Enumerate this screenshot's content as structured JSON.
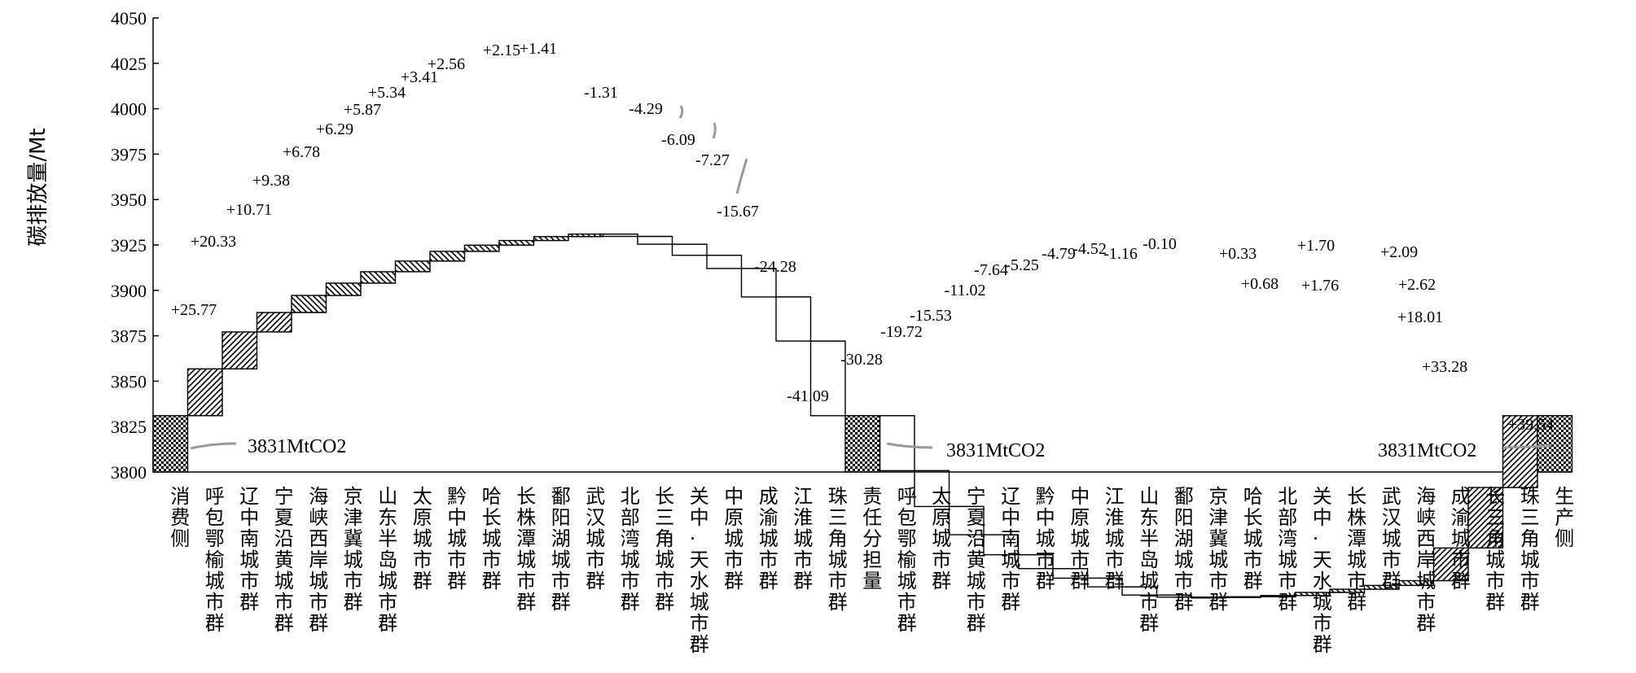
{
  "chart_data": {
    "type": "bar",
    "chart_style": "waterfall",
    "ylabel": "碳排放量/Mt",
    "ylim": [
      3800,
      4050
    ],
    "yticks": [
      3800,
      3825,
      3850,
      3875,
      3900,
      3925,
      3950,
      3975,
      4000,
      4025,
      4050
    ],
    "grid": false,
    "categories": [
      "消费侧",
      "呼包鄂榆城市群",
      "辽中南城市群",
      "宁夏沿黄城市群",
      "海峡西岸城市群",
      "京津冀城市群",
      "山东半岛城市群",
      "太原城市群",
      "黔中城市群",
      "哈长城市群",
      "长株潭城市群",
      "鄱阳湖城市群",
      "武汉城市群",
      "北部湾城市群",
      "长三角城市群",
      "关中-天水城市群",
      "中原城市群",
      "成渝城市群",
      "江淮城市群",
      "珠三角城市群",
      "责任分担量",
      "呼包鄂榆城市群",
      "太原城市群",
      "宁夏沿黄城市群",
      "辽中南城市群",
      "黔中城市群",
      "中原城市群",
      "江淮城市群",
      "山东半岛城市群",
      "鄱阳湖城市群",
      "京津冀城市群",
      "哈长城市群",
      "北部湾城市群",
      "关中-天水城市群",
      "长株潭城市群",
      "武汉城市群",
      "海峡西岸城市群",
      "成渝城市群",
      "长三角城市群",
      "珠三角城市群",
      "生产侧"
    ],
    "values": [
      3831,
      25.77,
      20.33,
      10.71,
      9.38,
      6.78,
      6.29,
      5.87,
      5.34,
      3.41,
      2.56,
      2.15,
      1.41,
      -1.31,
      -4.29,
      -6.09,
      -7.27,
      -15.67,
      -24.28,
      -41.09,
      3831,
      -30.28,
      -19.72,
      -15.53,
      -11.02,
      -7.64,
      -5.25,
      -4.79,
      -4.52,
      -1.16,
      -0.1,
      0.33,
      0.68,
      1.7,
      1.76,
      2.09,
      2.62,
      18.01,
      33.28,
      39.54,
      3831
    ],
    "value_labels": [
      "",
      "+25.77",
      "+20.33",
      "+10.71",
      "+9.38",
      "+6.78",
      "+6.29",
      "+5.87",
      "+5.34",
      "+3.41",
      "+2.56",
      "+2.15",
      "+1.41",
      "-1.31",
      "-4.29",
      "-6.09",
      "-7.27",
      "-15.67",
      "-24.28",
      "-41.09",
      "",
      "-30.28",
      "-19.72",
      "-15.53",
      "-11.02",
      "-7.64",
      "-5.25",
      "-4.79",
      "-4.52",
      "-1.16",
      "-0.10",
      "+0.33",
      "+0.68",
      "+1.70",
      "+1.76",
      "+2.09",
      "+2.62",
      "+18.01",
      "+33.28",
      "+39.54",
      ""
    ],
    "bar_kind": [
      "total",
      "inc",
      "inc",
      "inc",
      "inc",
      "inc",
      "inc",
      "inc",
      "inc",
      "inc",
      "inc",
      "inc",
      "inc",
      "dec",
      "dec",
      "dec",
      "dec",
      "dec",
      "dec",
      "dec",
      "total",
      "dec",
      "dec",
      "dec",
      "dec",
      "dec",
      "dec",
      "dec",
      "dec",
      "dec",
      "dec",
      "inc",
      "inc",
      "inc",
      "inc",
      "inc",
      "inc",
      "inc",
      "inc",
      "inc",
      "total"
    ],
    "total_labels": [
      "3831MtCO2",
      "3831MtCO2",
      "3831MtCO2"
    ]
  }
}
